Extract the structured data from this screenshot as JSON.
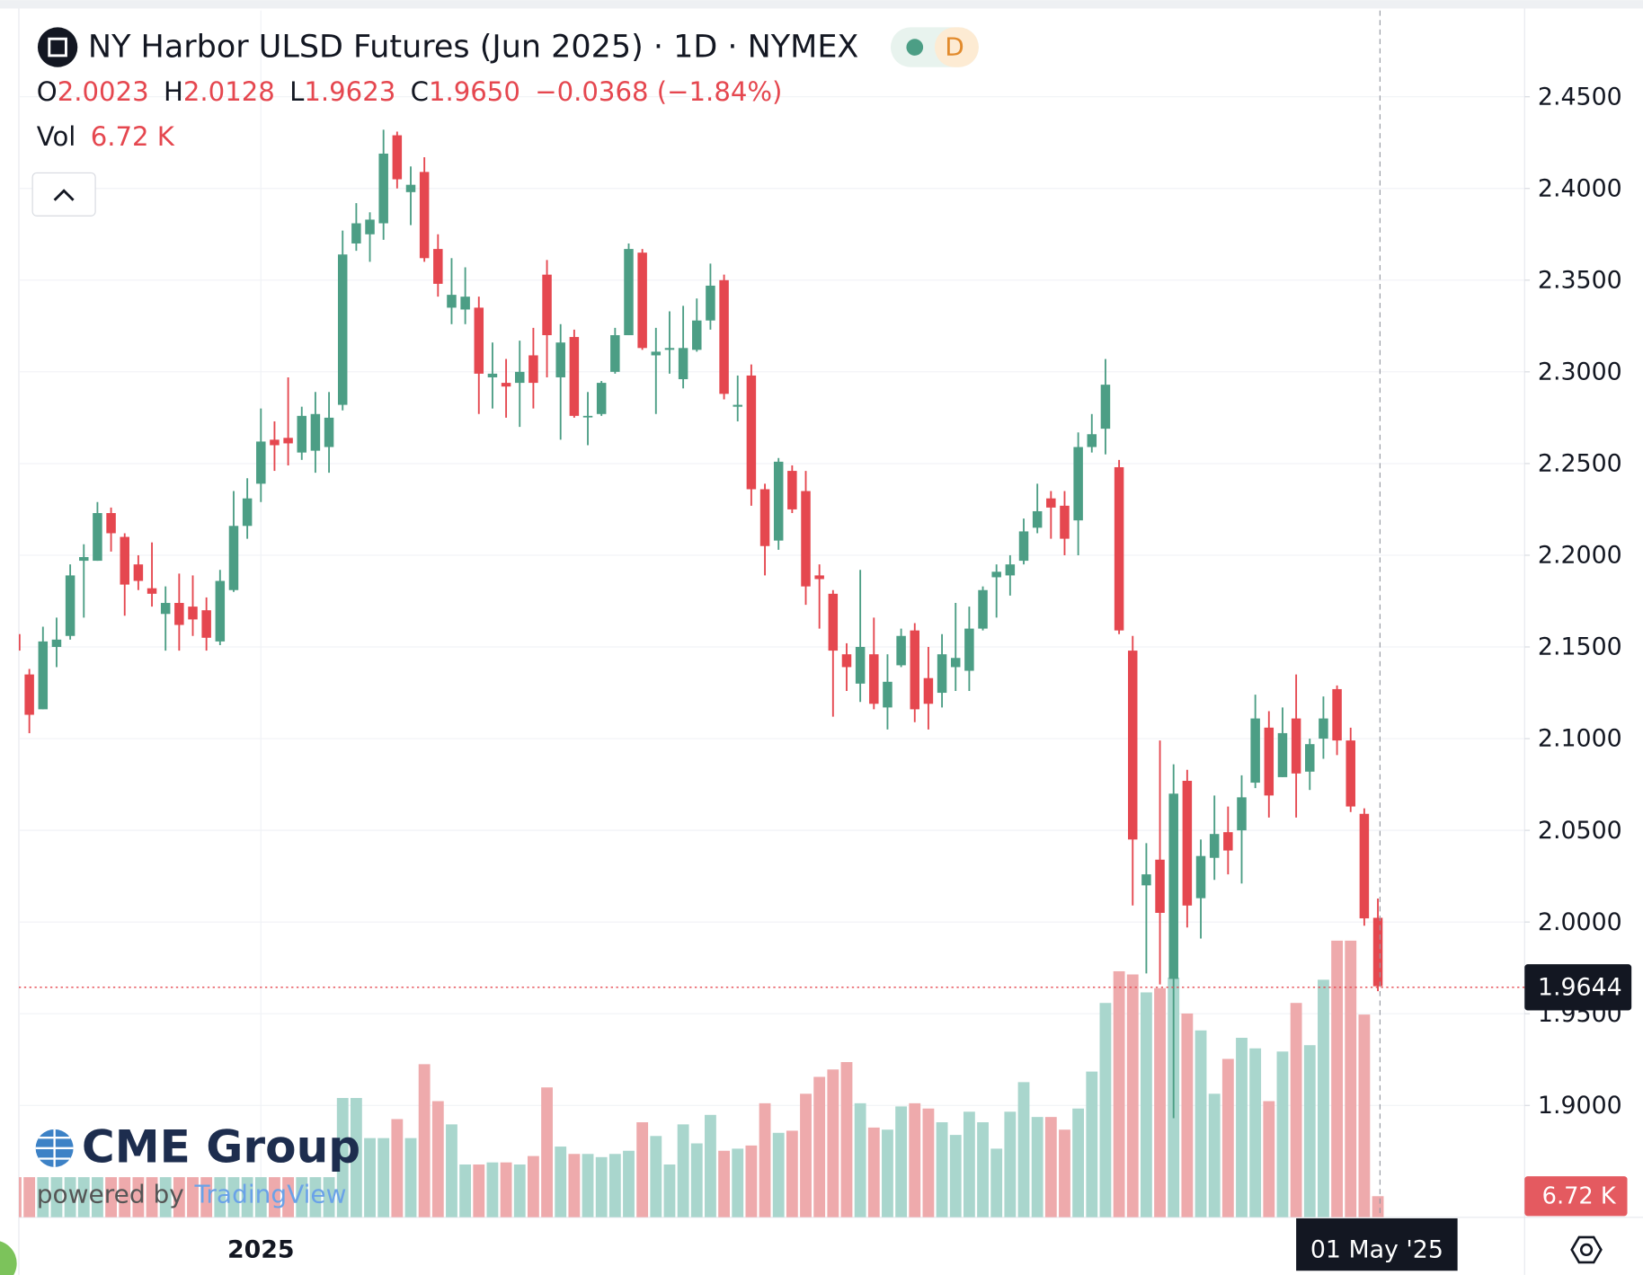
{
  "chart_data": {
    "type": "candlestick",
    "title": "NY Harbor ULSD Futures (Jun 2025) · 1D · NYMEX",
    "badge": "D",
    "header": {
      "open_label": "O",
      "open": "2.0023",
      "high_label": "H",
      "high": "2.0128",
      "low_label": "L",
      "low": "1.9623",
      "close_label": "C",
      "close": "1.9650",
      "change": "−0.0368 (−1.84%)",
      "volume_label": "Vol",
      "volume": "6.72 K"
    },
    "brand": {
      "name": "CME Group",
      "powered": "powered by",
      "platform": "TradingView"
    },
    "categories": [
      null,
      null,
      null,
      null,
      null,
      null,
      null,
      null,
      null,
      null,
      null,
      null,
      null,
      null,
      null,
      null,
      null,
      null,
      "2025",
      null,
      null,
      null,
      null,
      null,
      null,
      null,
      null,
      null,
      null,
      null,
      null,
      null,
      null,
      null,
      null,
      null,
      null,
      null,
      null,
      null,
      null,
      null,
      null,
      null,
      null,
      null,
      null,
      null,
      null,
      null,
      null,
      null,
      null,
      null,
      null,
      null,
      null,
      null,
      null,
      null,
      null,
      null,
      null,
      null,
      null,
      null,
      null,
      null,
      null,
      null,
      null,
      null,
      null,
      null,
      null,
      null,
      null,
      null,
      null,
      null,
      null,
      null,
      null,
      null,
      null,
      null,
      null,
      null,
      null,
      null,
      null,
      null,
      null,
      null,
      null,
      null,
      null,
      null,
      null,
      null,
      "01 May '25"
    ],
    "ohlc": {
      "open": [
        2.157,
        2.135,
        2.116,
        2.15,
        2.156,
        2.197,
        2.197,
        2.223,
        2.21,
        2.195,
        2.182,
        2.168,
        2.174,
        2.172,
        2.17,
        2.153,
        2.181,
        2.216,
        2.239,
        2.263,
        2.264,
        2.256,
        2.257,
        2.259,
        2.282,
        2.37,
        2.375,
        2.381,
        2.429,
        2.398,
        2.409,
        2.367,
        2.335,
        2.334,
        2.335,
        2.297,
        2.294,
        2.294,
        2.309,
        2.353,
        2.297,
        2.319,
        2.276,
        2.277,
        2.3,
        2.32,
        2.365,
        2.309,
        2.312,
        2.296,
        2.312,
        2.328,
        2.35,
        2.281,
        2.298,
        2.236,
        2.208,
        2.246,
        2.235,
        2.189,
        2.179,
        2.146,
        2.13,
        2.146,
        2.117,
        2.14,
        2.159,
        2.133,
        2.125,
        2.139,
        2.137,
        2.16,
        2.188,
        2.189,
        2.197,
        2.215,
        2.231,
        2.227,
        2.219,
        2.259,
        2.269,
        2.248,
        2.148,
        2.02,
        2.034,
        1.969,
        2.077,
        2.013,
        2.035,
        2.049,
        2.05,
        2.076,
        2.106,
        2.079,
        2.111,
        2.082,
        2.1,
        2.127,
        2.099,
        2.059,
        2.0023
      ],
      "high": [
        2.16,
        2.138,
        2.161,
        2.166,
        2.195,
        2.206,
        2.229,
        2.226,
        2.212,
        2.2,
        2.207,
        2.183,
        2.19,
        2.189,
        2.177,
        2.192,
        2.235,
        2.242,
        2.28,
        2.273,
        2.297,
        2.281,
        2.289,
        2.289,
        2.377,
        2.392,
        2.387,
        2.432,
        2.431,
        2.412,
        2.417,
        2.375,
        2.362,
        2.357,
        2.341,
        2.316,
        2.307,
        2.317,
        2.324,
        2.361,
        2.326,
        2.323,
        2.289,
        2.295,
        2.324,
        2.37,
        2.367,
        2.324,
        2.333,
        2.336,
        2.34,
        2.359,
        2.353,
        2.298,
        2.304,
        2.239,
        2.253,
        2.249,
        2.246,
        2.195,
        2.181,
        2.152,
        2.192,
        2.166,
        2.146,
        2.16,
        2.163,
        2.15,
        2.157,
        2.174,
        2.172,
        2.183,
        2.195,
        2.2,
        2.22,
        2.239,
        2.235,
        2.235,
        2.267,
        2.277,
        2.307,
        2.252,
        2.156,
        2.043,
        2.099,
        2.086,
        2.083,
        2.045,
        2.069,
        2.063,
        2.08,
        2.124,
        2.115,
        2.117,
        2.135,
        2.1,
        2.123,
        2.129,
        2.106,
        2.062,
        2.0128
      ],
      "low": [
        2.145,
        2.103,
        2.116,
        2.139,
        2.154,
        2.166,
        2.197,
        2.202,
        2.167,
        2.181,
        2.172,
        2.148,
        2.148,
        2.156,
        2.148,
        2.151,
        2.18,
        2.209,
        2.229,
        2.246,
        2.249,
        2.252,
        2.245,
        2.245,
        2.279,
        2.366,
        2.36,
        2.372,
        2.4,
        2.38,
        2.36,
        2.341,
        2.326,
        2.326,
        2.277,
        2.28,
        2.275,
        2.27,
        2.28,
        2.297,
        2.263,
        2.275,
        2.26,
        2.276,
        2.299,
        2.32,
        2.312,
        2.277,
        2.299,
        2.291,
        2.311,
        2.323,
        2.285,
        2.273,
        2.227,
        2.189,
        2.203,
        2.223,
        2.173,
        2.16,
        2.112,
        2.126,
        2.12,
        2.116,
        2.105,
        2.139,
        2.109,
        2.105,
        2.117,
        2.126,
        2.126,
        2.159,
        2.166,
        2.178,
        2.195,
        2.212,
        2.209,
        2.2,
        2.2,
        2.256,
        2.255,
        2.157,
        2.009,
        1.972,
        1.966,
        1.893,
        1.997,
        1.991,
        2.023,
        2.026,
        2.021,
        2.073,
        2.057,
        2.079,
        2.057,
        2.072,
        2.089,
        2.091,
        2.06,
        1.998,
        1.9623
      ],
      "close": [
        2.148,
        2.113,
        2.153,
        2.154,
        2.189,
        2.199,
        2.223,
        2.212,
        2.184,
        2.186,
        2.179,
        2.174,
        2.162,
        2.165,
        2.155,
        2.186,
        2.216,
        2.231,
        2.262,
        2.26,
        2.261,
        2.276,
        2.277,
        2.275,
        2.364,
        2.381,
        2.383,
        2.419,
        2.405,
        2.402,
        2.362,
        2.348,
        2.342,
        2.341,
        2.299,
        2.299,
        2.292,
        2.3,
        2.294,
        2.32,
        2.316,
        2.276,
        2.276,
        2.294,
        2.32,
        2.367,
        2.313,
        2.311,
        2.313,
        2.313,
        2.328,
        2.347,
        2.288,
        2.282,
        2.236,
        2.205,
        2.251,
        2.225,
        2.183,
        2.187,
        2.148,
        2.139,
        2.15,
        2.119,
        2.131,
        2.156,
        2.116,
        2.119,
        2.146,
        2.144,
        2.16,
        2.181,
        2.191,
        2.195,
        2.213,
        2.224,
        2.226,
        2.209,
        2.259,
        2.266,
        2.293,
        2.159,
        2.045,
        2.026,
        2.005,
        2.07,
        2.009,
        2.036,
        2.048,
        2.039,
        2.068,
        2.111,
        2.069,
        2.103,
        2.081,
        2.097,
        2.111,
        2.099,
        2.063,
        2.002,
        1.965
      ],
      "volume": [
        12770,
        12770,
        12770,
        12770,
        12770,
        12770,
        12770,
        12770,
        12770,
        12770,
        12770,
        12770,
        12770,
        12770,
        12770,
        12770,
        12770,
        12770,
        12770,
        12770,
        12770,
        12770,
        12770,
        12770,
        37970,
        37970,
        25200,
        25200,
        31250,
        25200,
        48720,
        36960,
        29570,
        16800,
        16800,
        17470,
        17470,
        16800,
        19490,
        41330,
        22510,
        20160,
        20160,
        19150,
        20160,
        21170,
        30240,
        25870,
        16800,
        29570,
        23520,
        32590,
        21170,
        21840,
        22850,
        36290,
        26880,
        27550,
        39310,
        44690,
        47040,
        49390,
        36290,
        28560,
        27890,
        35280,
        36290,
        34610,
        30240,
        26210,
        33600,
        30240,
        21840,
        33600,
        43010,
        31920,
        31920,
        27890,
        34610,
        46370,
        68210,
        78290,
        77280,
        71570,
        72910,
        76270,
        64850,
        59470,
        39310,
        50400,
        57120,
        53760,
        36960,
        52750,
        68210,
        54770,
        75600,
        88030,
        88030,
        64510,
        6720
      ]
    },
    "up_color": "#4c9e85",
    "down_color": "#e5474f",
    "volume_up_color": "#a9d6cd",
    "volume_down_color": "#eeaaac",
    "ylim": [
      1.839,
      2.497
    ],
    "volume_ylim": [
      0,
      100000
    ],
    "yticks": [
      {
        "value": 1.9,
        "label": "1.9000"
      },
      {
        "value": 1.95,
        "label": "1.9500"
      },
      {
        "value": 2.0,
        "label": "2.0000"
      },
      {
        "value": 2.05,
        "label": "2.0500"
      },
      {
        "value": 2.1,
        "label": "2.1000"
      },
      {
        "value": 2.15,
        "label": "2.1500"
      },
      {
        "value": 2.2,
        "label": "2.2000"
      },
      {
        "value": 2.25,
        "label": "2.2500"
      },
      {
        "value": 2.3,
        "label": "2.3000"
      },
      {
        "value": 2.35,
        "label": "2.3500"
      },
      {
        "value": 2.4,
        "label": "2.4000"
      },
      {
        "value": 2.45,
        "label": "2.4500"
      }
    ],
    "last_price": 1.9644,
    "grid": true
  }
}
